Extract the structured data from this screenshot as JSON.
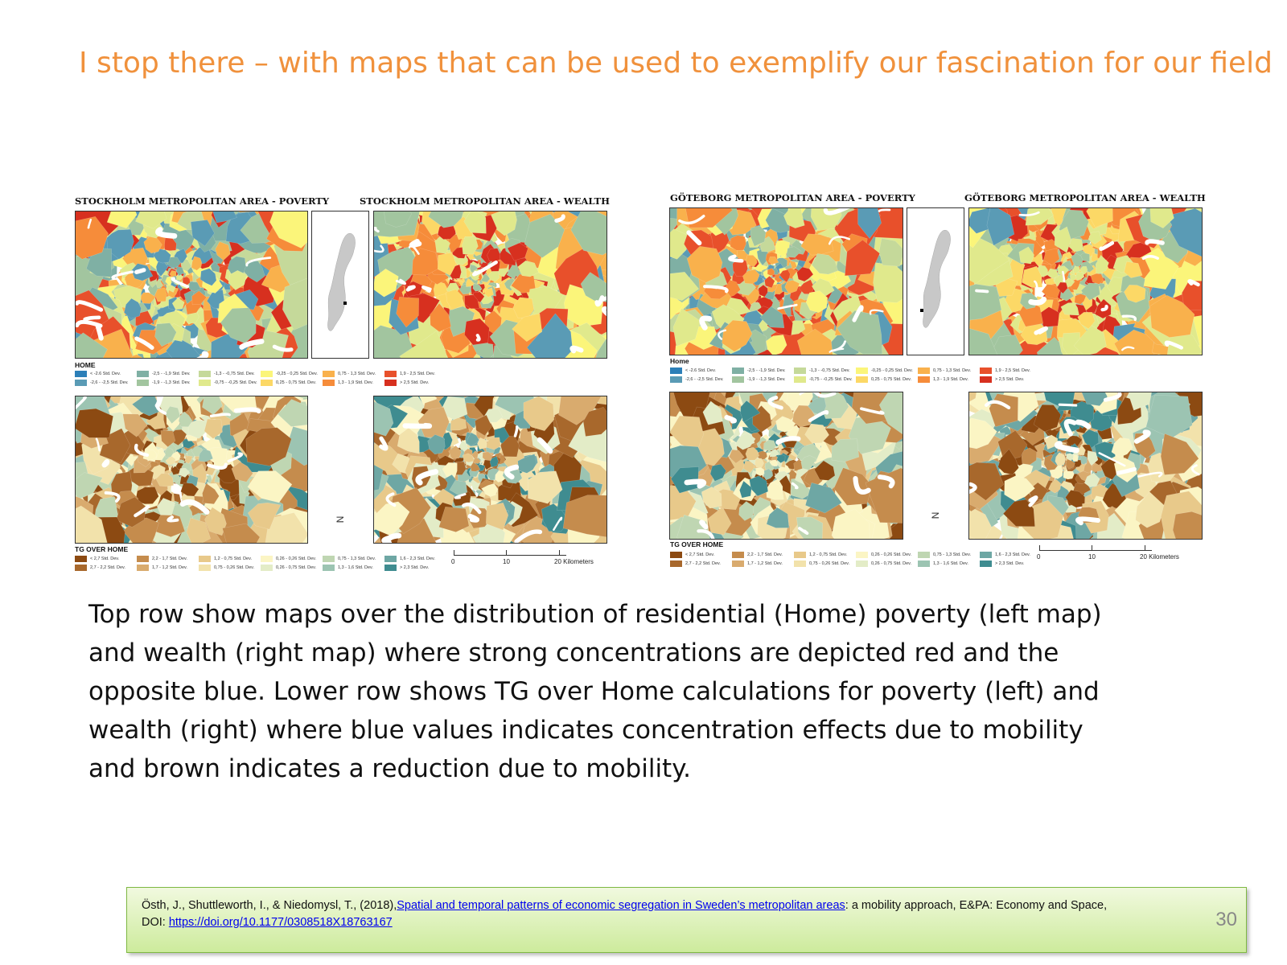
{
  "slide": {
    "title": "I stop there – with maps that can be used to exemplify our fascination for our field",
    "body": "Top row show maps over the distribution of residential (Home) poverty (left map) and wealth (right map) where strong concentrations are depicted red and the opposite blue. Lower row shows TG over Home calculations for poverty (left) and wealth (right) where blue values indicates concentration effects due to mobility and brown indicates a reduction due to mobility.",
    "page_number": "30"
  },
  "figures": [
    {
      "id": "stockholm",
      "poverty_title": "STOCKHOLM METROPOLITAN AREA - POVERTY",
      "wealth_title": "STOCKHOLM METROPOLITAN AREA - WEALTH",
      "home_legend_title": "HOME",
      "tg_legend_title": "TG OVER HOME"
    },
    {
      "id": "goteborg",
      "poverty_title": "GÖTEBORG METROPOLITAN AREA - POVERTY",
      "wealth_title": "GÖTEBORG METROPOLITAN AREA - WEALTH",
      "home_legend_title": "Home",
      "tg_legend_title": "TG OVER HOME"
    }
  ],
  "home_legend": [
    {
      "label": "< -2.6 Std. Dev.",
      "color": "#2c7fb8"
    },
    {
      "label": "-2,5 - -1,9 Std. Dev.",
      "color": "#7fb0a4"
    },
    {
      "label": "-1,3 - -0,75 Std. Dev.",
      "color": "#c5d99a"
    },
    {
      "label": "-0,25 - 0,25 Std. Dev.",
      "color": "#fbf57a"
    },
    {
      "label": "0,75 - 1,3 Std. Dev.",
      "color": "#f9b14c"
    },
    {
      "label": "1,9 - 2,5 Std. Dev.",
      "color": "#e8502b"
    },
    {
      "label": "",
      "color": ""
    },
    {
      "label": "-2,6 - -2,5 Std. Dev.",
      "color": "#5a9bb5"
    },
    {
      "label": "-1,9 - -1,3 Std. Dev.",
      "color": "#a2c59f"
    },
    {
      "label": "-0,75 - -0,25 Std. Dev.",
      "color": "#e0e98c"
    },
    {
      "label": "0,25 - 0,75 Std. Dev.",
      "color": "#fcd866"
    },
    {
      "label": "1,3 - 1,9 Std. Dev.",
      "color": "#f68c3a"
    },
    {
      "label": "> 2,5 Std. Dev.",
      "color": "#d7301f"
    }
  ],
  "tg_legend": [
    {
      "label": "< 2,7 Std. Dev.",
      "color": "#8c4a12"
    },
    {
      "label": "2,2 - 1,7 Std. Dev.",
      "color": "#c58c4d"
    },
    {
      "label": "1,2 - 0,75 Std. Dev.",
      "color": "#e8c98a"
    },
    {
      "label": "0,26 - 0,26 Std. Dev.",
      "color": "#fbf5c4"
    },
    {
      "label": "0,75 - 1,3 Std. Dev.",
      "color": "#bfd6b2"
    },
    {
      "label": "1,6 - 2,3 Std. Dev.",
      "color": "#6ea7a4"
    },
    {
      "label": "",
      "color": ""
    },
    {
      "label": "2,7 - 2,2 Std. Dev.",
      "color": "#a8682c"
    },
    {
      "label": "1,7 - 1,2 Std. Dev.",
      "color": "#d9ab6e"
    },
    {
      "label": "0,75 - 0,26 Std. Dev.",
      "color": "#f2e2ab"
    },
    {
      "label": "0,26 - 0,75 Std. Dev.",
      "color": "#e3ecc7"
    },
    {
      "label": "1,3 - 1,6 Std. Dev.",
      "color": "#9cc4b2"
    },
    {
      "label": "> 2,3 Std. Dev.",
      "color": "#3f8c90"
    }
  ],
  "scale": {
    "ticks": [
      "0",
      "10",
      "20 Kilometers"
    ]
  },
  "north_label": "N",
  "citation": {
    "prefix": "Östh, J., Shuttleworth, I., & Niedomysl, T., (2018),",
    "link_text": "Spatial and temporal patterns of economic segregation in Sweden’s metropolitan areas",
    "suffix": ": a mobility approach, E&PA: Economy and Space,",
    "doi_prefix": "DOI: ",
    "doi_link": "https://doi.org/10.1177/0308518X18763167"
  }
}
